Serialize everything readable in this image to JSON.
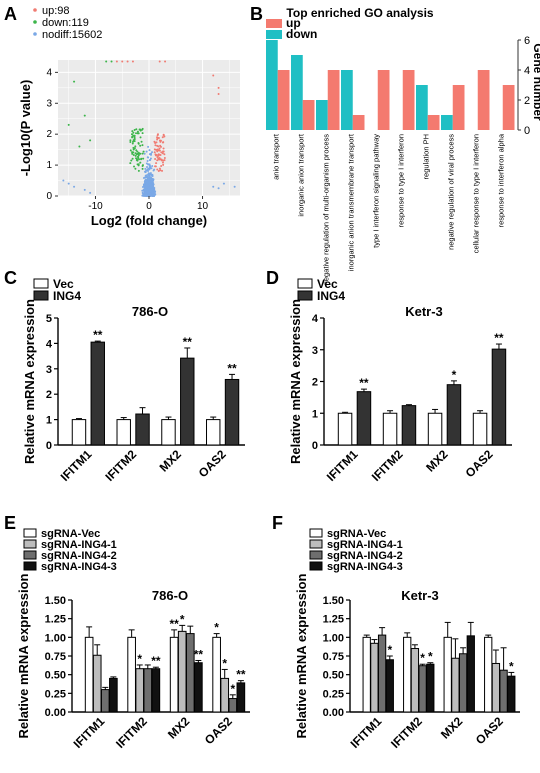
{
  "panels": {
    "A": {
      "letter": "A"
    },
    "B": {
      "letter": "B"
    },
    "C": {
      "letter": "C"
    },
    "D": {
      "letter": "D"
    },
    "E": {
      "letter": "E"
    },
    "F": {
      "letter": "F"
    }
  },
  "chart_data": [
    {
      "id": "A",
      "type": "scatter",
      "title": "",
      "xlabel": "Log2 (fold change)",
      "ylabel": "-Log10(P value)",
      "xlim": [
        -17,
        17
      ],
      "ylim": [
        0,
        4.4
      ],
      "xticks": [
        "-10",
        "0",
        "10"
      ],
      "yticks": [
        "0",
        "1",
        "2",
        "3",
        "4"
      ],
      "grid": true,
      "legend": [
        {
          "label": "up:98",
          "color": "#f07b72"
        },
        {
          "label": "down:119",
          "color": "#3cb54a"
        },
        {
          "label": "nodiff:15602",
          "color": "#7aa8e6"
        }
      ]
    },
    {
      "id": "B",
      "type": "bar",
      "title": "Top enriched GO analysis",
      "ylabel": "Gene number",
      "ylim": [
        0,
        6
      ],
      "yticks": [
        "0",
        "2",
        "4",
        "6"
      ],
      "legend": [
        {
          "label": "up",
          "color": "#f47a6f"
        },
        {
          "label": "down",
          "color": "#1fbfc4"
        }
      ],
      "categories": [
        "anio transport",
        "inorganic anion transport",
        "negative regulation of multi-organism process",
        "inorganic anion transmembrane transport",
        "type I interferon signaling pathway",
        "response to type I interferon",
        "regulation PH",
        "negative regulation of viral process",
        "cellular response to type I interferon",
        "response to interferon alpha"
      ],
      "series": [
        {
          "name": "down",
          "values": [
            6,
            5,
            2,
            4,
            0,
            0,
            3,
            1,
            0,
            0
          ]
        },
        {
          "name": "up",
          "values": [
            4,
            2,
            4,
            1,
            4,
            4,
            1,
            3,
            4,
            3
          ]
        }
      ]
    },
    {
      "id": "C",
      "type": "bar",
      "title": "786-O",
      "ylabel": "Relative mRNA expression",
      "ylim": [
        0,
        5
      ],
      "yticks": [
        "0",
        "1",
        "2",
        "3",
        "4",
        "5"
      ],
      "categories": [
        "IFITM1",
        "IFITM2",
        "MX2",
        "OAS2"
      ],
      "legend": [
        {
          "label": "Vec",
          "color": "#ffffff"
        },
        {
          "label": "ING4",
          "color": "#333333"
        }
      ],
      "series": [
        {
          "name": "Vec",
          "values": [
            1.0,
            1.0,
            1.0,
            1.0
          ],
          "err": [
            0.04,
            0.08,
            0.1,
            0.1
          ]
        },
        {
          "name": "ING4",
          "values": [
            4.05,
            1.22,
            3.42,
            2.58
          ],
          "err": [
            0.04,
            0.25,
            0.4,
            0.2
          ]
        }
      ],
      "annotations": [
        "**",
        "",
        "**",
        "**"
      ]
    },
    {
      "id": "D",
      "type": "bar",
      "title": "Ketr-3",
      "ylabel": "Relative mRNA expression",
      "ylim": [
        0,
        4
      ],
      "yticks": [
        "0",
        "1",
        "2",
        "3",
        "4"
      ],
      "categories": [
        "IFITM1",
        "IFITM2",
        "MX2",
        "OAS2"
      ],
      "legend": [
        {
          "label": "Vec",
          "color": "#ffffff"
        },
        {
          "label": "ING4",
          "color": "#333333"
        }
      ],
      "series": [
        {
          "name": "Vec",
          "values": [
            1.0,
            1.0,
            1.0,
            1.0
          ],
          "err": [
            0.03,
            0.08,
            0.12,
            0.08
          ]
        },
        {
          "name": "ING4",
          "values": [
            1.68,
            1.24,
            1.9,
            3.02
          ],
          "err": [
            0.08,
            0.03,
            0.12,
            0.16
          ]
        }
      ],
      "annotations": [
        "**",
        "",
        "*",
        "**"
      ]
    },
    {
      "id": "E",
      "type": "bar",
      "title": "786-O",
      "ylabel": "Relative mRNA expression",
      "ylim": [
        0,
        1.5
      ],
      "yticks": [
        "0.00",
        "0.25",
        "0.50",
        "0.75",
        "1.00",
        "1.25",
        "1.50"
      ],
      "categories": [
        "IFITM1",
        "IFITM2",
        "MX2",
        "OAS2"
      ],
      "legend": [
        {
          "label": "sgRNA-Vec",
          "color": "#ffffff"
        },
        {
          "label": "sgRNA-ING4-1",
          "color": "#bdbdbd"
        },
        {
          "label": "sgRNA-ING4-2",
          "color": "#6e6e6e"
        },
        {
          "label": "sgRNA-ING4-3",
          "color": "#111111"
        }
      ],
      "series": [
        {
          "name": "sgRNA-Vec",
          "values": [
            1.0,
            1.0,
            1.0,
            1.0
          ],
          "err": [
            0.14,
            0.1,
            0.1,
            0.05
          ]
        },
        {
          "name": "sgRNA-ING4-1",
          "values": [
            0.76,
            0.58,
            1.08,
            0.45
          ],
          "err": [
            0.14,
            0.05,
            0.08,
            0.12
          ]
        },
        {
          "name": "sgRNA-ING4-2",
          "values": [
            0.3,
            0.58,
            1.05,
            0.18
          ],
          "err": [
            0.03,
            0.05,
            0.1,
            0.05
          ]
        },
        {
          "name": "sgRNA-ING4-3",
          "values": [
            0.45,
            0.58,
            0.66,
            0.39
          ],
          "err": [
            0.02,
            0.02,
            0.03,
            0.03
          ]
        }
      ],
      "annotations": [
        [
          "",
          "",
          "**",
          "*"
        ],
        [
          "",
          "*",
          "*",
          "*"
        ],
        [
          "",
          "",
          "",
          "*"
        ],
        [
          "",
          "**",
          "**",
          "**"
        ]
      ]
    },
    {
      "id": "F",
      "type": "bar",
      "title": "Ketr-3",
      "ylabel": "Relative mRNA expression",
      "ylim": [
        0,
        1.5
      ],
      "yticks": [
        "0.00",
        "0.25",
        "0.50",
        "0.75",
        "1.00",
        "1.25",
        "1.50"
      ],
      "categories": [
        "IFITM1",
        "IFITM2",
        "MX2",
        "OAS2"
      ],
      "legend": [
        {
          "label": "sgRNA-Vec",
          "color": "#ffffff"
        },
        {
          "label": "sgRNA-ING4-1",
          "color": "#bdbdbd"
        },
        {
          "label": "sgRNA-ING4-2",
          "color": "#6e6e6e"
        },
        {
          "label": "sgRNA-ING4-3",
          "color": "#111111"
        }
      ],
      "series": [
        {
          "name": "sgRNA-Vec",
          "values": [
            1.0,
            1.0,
            1.0,
            1.0
          ],
          "err": [
            0.03,
            0.06,
            0.2,
            0.03
          ]
        },
        {
          "name": "sgRNA-ING4-1",
          "values": [
            0.92,
            0.85,
            0.72,
            0.65
          ],
          "err": [
            0.05,
            0.05,
            0.26,
            0.18
          ]
        },
        {
          "name": "sgRNA-ING4-2",
          "values": [
            1.03,
            0.62,
            0.78,
            0.56
          ],
          "err": [
            0.1,
            0.02,
            0.08,
            0.3
          ]
        },
        {
          "name": "sgRNA-ING4-3",
          "values": [
            0.7,
            0.64,
            1.02,
            0.48
          ],
          "err": [
            0.05,
            0.02,
            0.18,
            0.05
          ]
        }
      ],
      "annotations": [
        [
          "",
          "",
          "",
          ""
        ],
        [
          "",
          "",
          "",
          ""
        ],
        [
          "",
          "*",
          "",
          ""
        ],
        [
          "*",
          "*",
          "",
          "*"
        ]
      ]
    }
  ]
}
